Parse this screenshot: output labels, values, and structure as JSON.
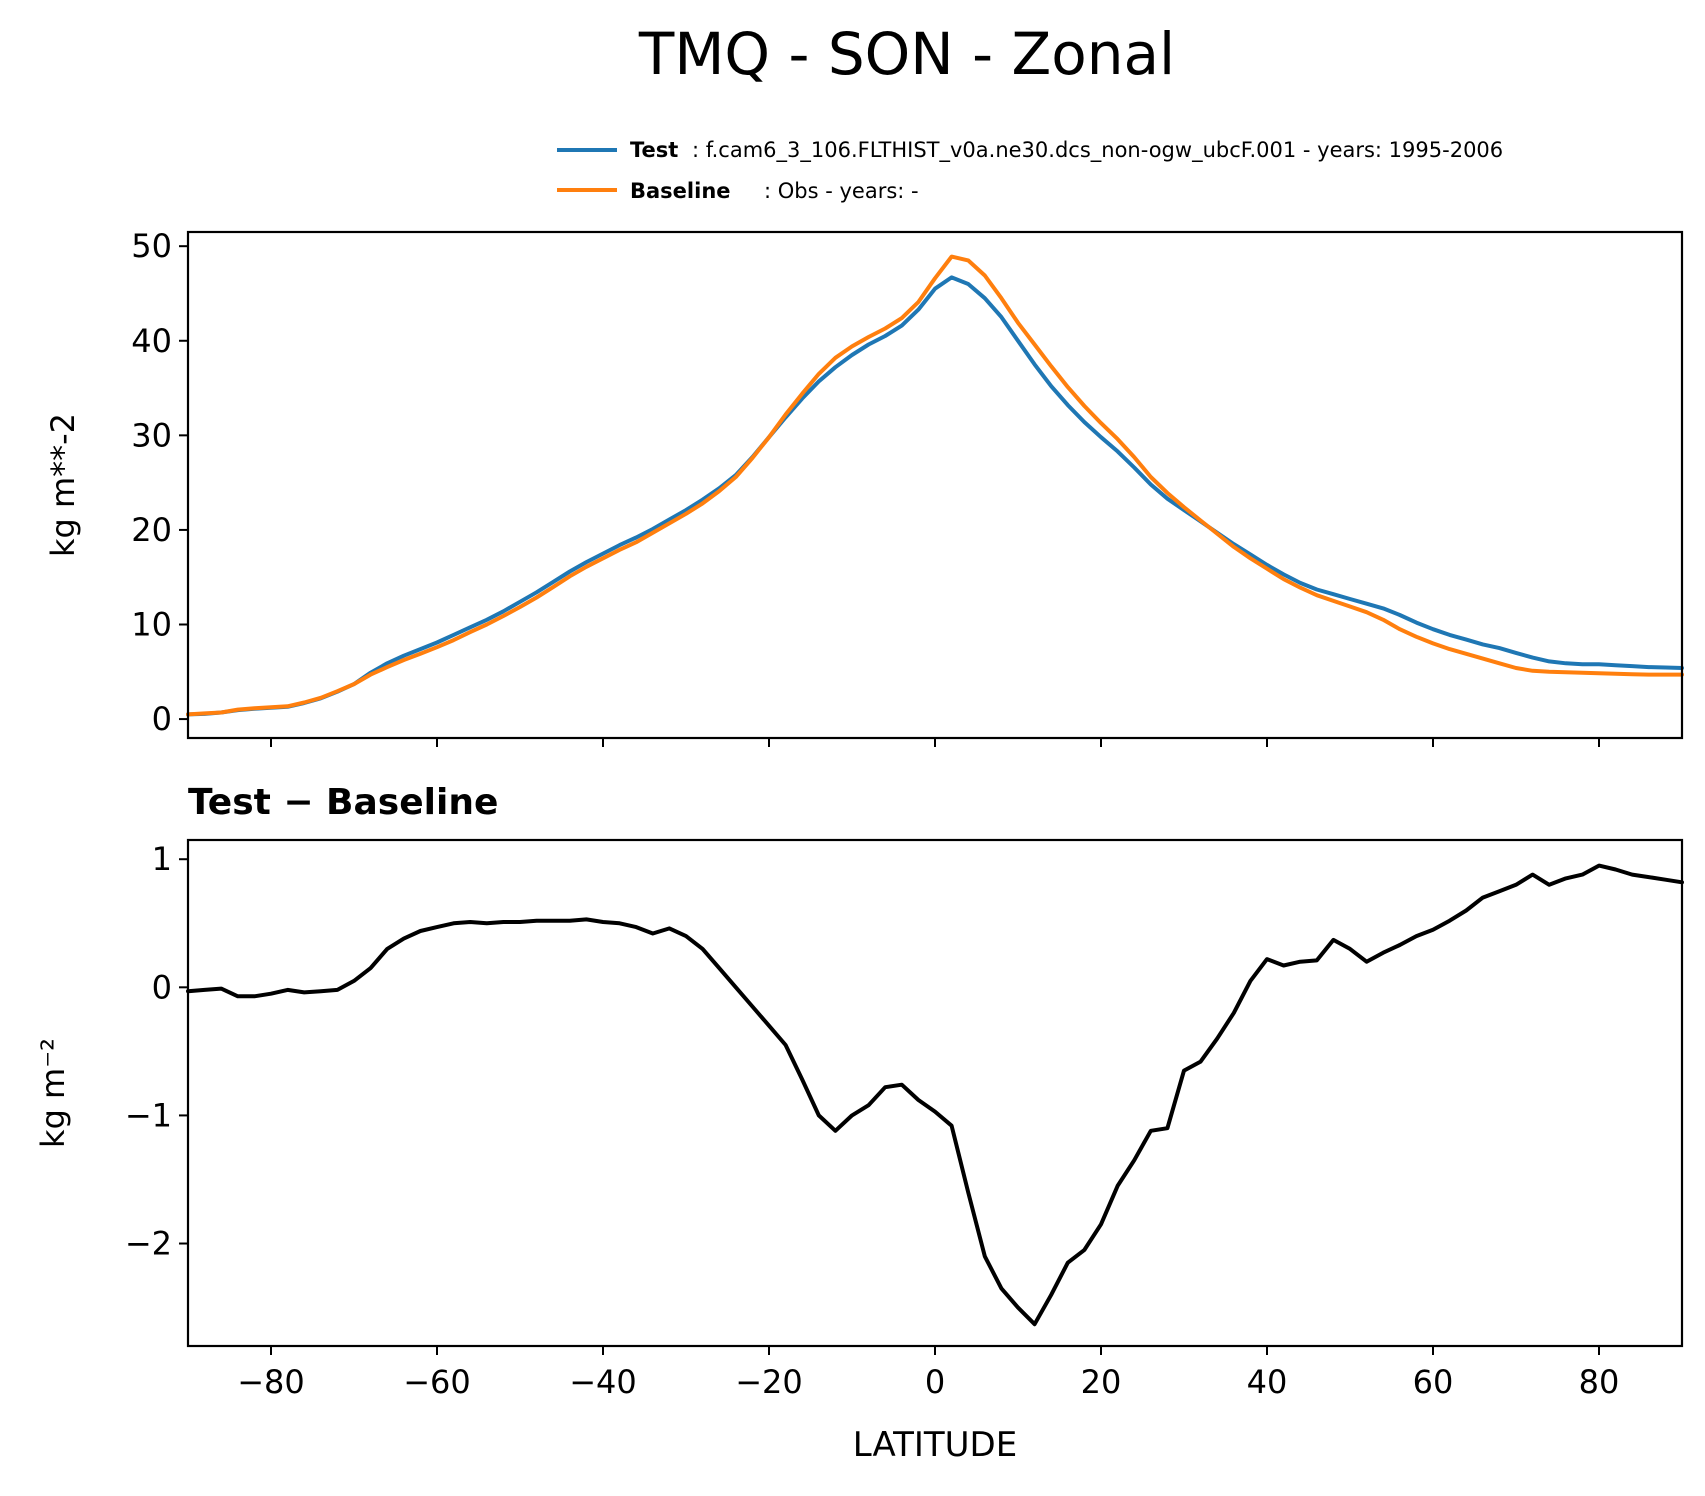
{
  "title": "TMQ - SON - Zonal",
  "legend": {
    "test_label": "Test",
    "test_text": ": f.cam6_3_106.FLTHIST_v0a.ne30.dcs_non-ogw_ubcF.001 - years: 1995-2006",
    "baseline_label": "Baseline",
    "baseline_text": ": Obs - years: -"
  },
  "colors": {
    "test": "#1f77b4",
    "baseline": "#ff7f0e",
    "difference": "#000000"
  },
  "chart_data": [
    {
      "type": "line",
      "ylabel": "kg m**-2",
      "xlim": [
        -90,
        90
      ],
      "ylim": [
        -2,
        51.5
      ],
      "yticks": [
        0,
        10,
        20,
        30,
        40,
        50
      ],
      "xticks": [
        -80,
        -60,
        -40,
        -20,
        0,
        20,
        40,
        60,
        80
      ],
      "xticklabels_visible": false,
      "grid": false,
      "legend_position": "top-right, above plot",
      "x": [
        -90,
        -88,
        -86,
        -84,
        -82,
        -80,
        -78,
        -76,
        -74,
        -72,
        -70,
        -68,
        -66,
        -64,
        -62,
        -60,
        -58,
        -56,
        -54,
        -52,
        -50,
        -48,
        -46,
        -44,
        -42,
        -40,
        -38,
        -36,
        -34,
        -32,
        -30,
        -28,
        -26,
        -24,
        -22,
        -20,
        -18,
        -16,
        -14,
        -12,
        -10,
        -8,
        -6,
        -4,
        -2,
        0,
        2,
        4,
        6,
        8,
        10,
        12,
        14,
        16,
        18,
        20,
        22,
        24,
        26,
        28,
        30,
        32,
        34,
        36,
        38,
        40,
        42,
        44,
        46,
        48,
        50,
        52,
        54,
        56,
        58,
        60,
        62,
        64,
        66,
        68,
        70,
        72,
        74,
        76,
        78,
        80,
        82,
        84,
        86,
        88,
        90
      ],
      "series": [
        {
          "name": "Test",
          "color": "#1f77b4",
          "values": [
            0.5,
            0.55,
            0.7,
            0.95,
            1.1,
            1.2,
            1.3,
            1.7,
            2.2,
            2.9,
            3.7,
            4.9,
            5.9,
            6.7,
            7.4,
            8.1,
            8.9,
            9.7,
            10.5,
            11.4,
            12.4,
            13.4,
            14.5,
            15.6,
            16.6,
            17.5,
            18.4,
            19.2,
            20.1,
            21.1,
            22.1,
            23.2,
            24.4,
            25.8,
            27.7,
            29.8,
            31.9,
            33.9,
            35.7,
            37.2,
            38.5,
            39.6,
            40.5,
            41.6,
            43.3,
            45.5,
            46.7,
            46.0,
            44.5,
            42.5,
            40.0,
            37.5,
            35.2,
            33.2,
            31.4,
            29.8,
            28.3,
            26.6,
            24.8,
            23.3,
            22.1,
            20.9,
            19.7,
            18.5,
            17.4,
            16.3,
            15.3,
            14.4,
            13.7,
            13.2,
            12.7,
            12.2,
            11.7,
            11.0,
            10.2,
            9.5,
            8.9,
            8.4,
            7.9,
            7.5,
            7.0,
            6.5,
            6.1,
            5.9,
            5.8,
            5.8,
            5.7,
            5.6,
            5.5,
            5.45,
            5.4
          ]
        },
        {
          "name": "Baseline",
          "color": "#ff7f0e",
          "values": [
            0.5,
            0.6,
            0.7,
            1.0,
            1.15,
            1.25,
            1.35,
            1.75,
            2.25,
            2.95,
            3.7,
            4.7,
            5.5,
            6.25,
            6.9,
            7.6,
            8.35,
            9.2,
            10.0,
            10.9,
            11.85,
            12.85,
            13.95,
            15.1,
            16.1,
            17.0,
            17.9,
            18.7,
            19.7,
            20.7,
            21.7,
            22.8,
            24.1,
            25.6,
            27.6,
            29.8,
            32.2,
            34.4,
            36.5,
            38.2,
            39.4,
            40.4,
            41.3,
            42.4,
            44.1,
            46.6,
            48.9,
            48.5,
            46.9,
            44.5,
            41.9,
            39.6,
            37.3,
            35.1,
            33.1,
            31.3,
            29.6,
            27.7,
            25.6,
            23.9,
            22.4,
            21.0,
            19.6,
            18.2,
            17.0,
            15.9,
            14.8,
            13.9,
            13.1,
            12.5,
            11.9,
            11.3,
            10.5,
            9.5,
            8.7,
            8.0,
            7.4,
            6.9,
            6.4,
            5.9,
            5.4,
            5.1,
            5.0,
            4.95,
            4.9,
            4.85,
            4.8,
            4.75,
            4.7,
            4.7,
            4.7
          ]
        }
      ]
    },
    {
      "type": "line",
      "title": "Test − Baseline",
      "ylabel": "kg m⁻²",
      "xlabel": "LATITUDE",
      "xlim": [
        -90,
        90
      ],
      "ylim": [
        -2.8,
        1.15
      ],
      "yticks": [
        -2,
        -1,
        0,
        1
      ],
      "yticklabels": [
        "−2",
        "−1",
        "0",
        "1"
      ],
      "xticks": [
        -80,
        -60,
        -40,
        -20,
        0,
        20,
        40,
        60,
        80
      ],
      "xticklabels": [
        "−80",
        "−60",
        "−40",
        "−20",
        "0",
        "20",
        "40",
        "60",
        "80"
      ],
      "grid": false,
      "x": [
        -90,
        -88,
        -86,
        -84,
        -82,
        -80,
        -78,
        -76,
        -74,
        -72,
        -70,
        -68,
        -66,
        -64,
        -62,
        -60,
        -58,
        -56,
        -54,
        -52,
        -50,
        -48,
        -46,
        -44,
        -42,
        -40,
        -38,
        -36,
        -34,
        -32,
        -30,
        -28,
        -26,
        -24,
        -22,
        -20,
        -18,
        -16,
        -14,
        -12,
        -10,
        -8,
        -6,
        -4,
        -2,
        0,
        2,
        4,
        6,
        8,
        10,
        12,
        14,
        16,
        18,
        20,
        22,
        24,
        26,
        28,
        30,
        32,
        34,
        36,
        38,
        40,
        42,
        44,
        46,
        48,
        50,
        52,
        54,
        56,
        58,
        60,
        62,
        64,
        66,
        68,
        70,
        72,
        74,
        76,
        78,
        80,
        82,
        84,
        86,
        88,
        90
      ],
      "series": [
        {
          "color": "#000000",
          "values": [
            -0.03,
            -0.02,
            -0.01,
            -0.07,
            -0.07,
            -0.05,
            -0.02,
            -0.04,
            -0.03,
            -0.02,
            0.05,
            0.15,
            0.3,
            0.38,
            0.44,
            0.47,
            0.5,
            0.51,
            0.5,
            0.51,
            0.51,
            0.52,
            0.52,
            0.52,
            0.53,
            0.51,
            0.5,
            0.47,
            0.42,
            0.46,
            0.4,
            0.3,
            0.15,
            0.0,
            -0.15,
            -0.3,
            -0.45,
            -0.72,
            -1.0,
            -1.12,
            -1.0,
            -0.92,
            -0.78,
            -0.76,
            -0.88,
            -0.97,
            -1.08,
            -1.6,
            -2.1,
            -2.35,
            -2.5,
            -2.63,
            -2.4,
            -2.15,
            -2.05,
            -1.85,
            -1.55,
            -1.35,
            -1.12,
            -1.1,
            -0.65,
            -0.58,
            -0.4,
            -0.2,
            0.05,
            0.22,
            0.17,
            0.2,
            0.21,
            0.37,
            0.3,
            0.2,
            0.27,
            0.33,
            0.4,
            0.45,
            0.52,
            0.6,
            0.7,
            0.75,
            0.8,
            0.88,
            0.8,
            0.85,
            0.88,
            0.95,
            0.92,
            0.88,
            0.86,
            0.84,
            0.82
          ]
        }
      ]
    }
  ]
}
